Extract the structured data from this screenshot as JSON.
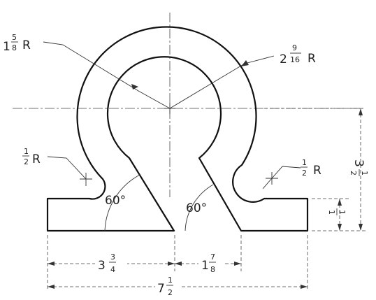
{
  "labels": {
    "inner_radius": {
      "whole": "1",
      "num": "5",
      "den": "8",
      "suffix": "R"
    },
    "outer_radius": {
      "whole": "2",
      "num": "9",
      "den": "16",
      "suffix": "R"
    },
    "left_fillet": {
      "num": "1",
      "den": "2",
      "suffix": "R"
    },
    "right_fillet": {
      "num": "1",
      "den": "2",
      "suffix": "R"
    },
    "left_angle": "60°",
    "right_angle": "60°",
    "height_total": {
      "whole": "3",
      "num": "1",
      "den": "2"
    },
    "base_height": {
      "num": "1",
      "den": "1"
    },
    "left_width": {
      "whole": "3",
      "num": "3",
      "den": "4"
    },
    "right_width": {
      "whole": "1",
      "num": "7",
      "den": "8"
    },
    "total_width": {
      "whole": "7",
      "num": "1",
      "den": "2"
    }
  },
  "colors": {
    "line": "#111111",
    "background": "#ffffff"
  }
}
